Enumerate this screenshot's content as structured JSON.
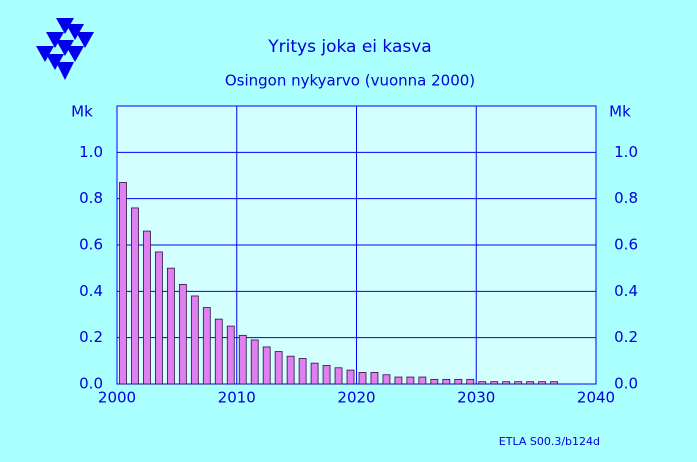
{
  "chart_data": {
    "type": "bar",
    "title": "Yritys joka ei kasva",
    "subtitle": "Osingon nykyarvo (vuonna 2000)",
    "y_label": "Mk",
    "y2_label": "Mk",
    "source": "ETLA S00.3/b124d",
    "x": [
      2001,
      2002,
      2003,
      2004,
      2005,
      2006,
      2007,
      2008,
      2009,
      2010,
      2011,
      2012,
      2013,
      2014,
      2015,
      2016,
      2017,
      2018,
      2019,
      2020,
      2021,
      2022,
      2023,
      2024,
      2025,
      2026,
      2027,
      2028,
      2029,
      2030,
      2031,
      2032,
      2033,
      2034,
      2035,
      2036,
      2037
    ],
    "values": [
      0.87,
      0.76,
      0.66,
      0.57,
      0.5,
      0.43,
      0.38,
      0.33,
      0.28,
      0.25,
      0.21,
      0.19,
      0.16,
      0.14,
      0.12,
      0.11,
      0.09,
      0.08,
      0.07,
      0.06,
      0.05,
      0.05,
      0.04,
      0.03,
      0.03,
      0.03,
      0.02,
      0.02,
      0.02,
      0.02,
      0.01,
      0.01,
      0.01,
      0.01,
      0.01,
      0.01,
      0.01
    ],
    "color": "#e080f0",
    "xlim": [
      2000,
      2040
    ],
    "xticks": [
      2000,
      2010,
      2020,
      2030,
      2040
    ],
    "ylim": [
      0,
      1.2
    ],
    "yticks": [
      {
        "value": 0,
        "label": "0.0"
      },
      0.2,
      0.4,
      0.6,
      0.8,
      {
        "value": 1,
        "label": "1.0"
      }
    ],
    "grid": true
  }
}
